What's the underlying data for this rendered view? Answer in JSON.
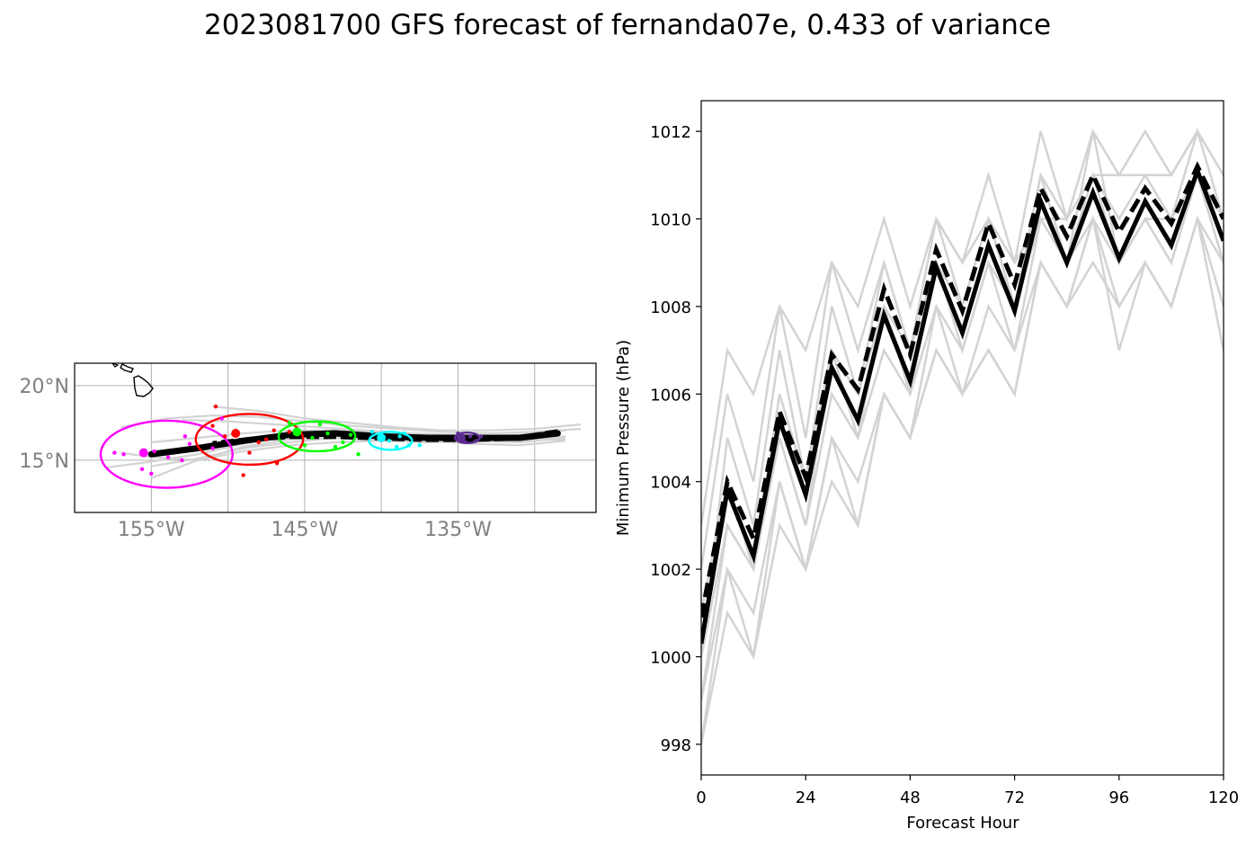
{
  "title": "2023081700 GFS forecast of fernanda07e, 0.433 of variance",
  "colors": {
    "ensemble": "#d3d3d3",
    "mean": "#000000",
    "gray_text": "#808080",
    "ellipses": [
      "#ff00ff",
      "#ff0000",
      "#00ff00",
      "#00ffff",
      "#5b2c91"
    ]
  },
  "chart_data": [
    {
      "type": "line",
      "subtype": "track-map",
      "xlim": [
        -160,
        -126
      ],
      "ylim": [
        11.5,
        21.5
      ],
      "xticks": [
        -155,
        -145,
        -135
      ],
      "xtick_labels": [
        "155°W",
        "145°W",
        "135°W"
      ],
      "yticks": [
        15,
        20
      ],
      "ytick_labels": [
        "15°N",
        "20°N"
      ],
      "grid": true,
      "mean_track": {
        "lon": [
          -128.5,
          -131,
          -134,
          -137,
          -140,
          -143,
          -146,
          -149,
          -152,
          -155
        ],
        "lat": [
          16.8,
          16.5,
          16.5,
          16.5,
          16.6,
          16.8,
          16.7,
          16.3,
          15.8,
          15.4
        ]
      },
      "dashed_track": {
        "lon": [
          -128.5,
          -131,
          -134,
          -137,
          -140,
          -143,
          -146,
          -148.5,
          -151
        ],
        "lat": [
          16.9,
          16.5,
          16.4,
          16.4,
          16.5,
          16.6,
          16.6,
          16.4,
          16.1
        ]
      },
      "ensemble_tracks": [
        {
          "lon": [
            -128,
            -131,
            -134,
            -137,
            -140,
            -143,
            -146,
            -149,
            -152,
            -155
          ],
          "lat": [
            17.0,
            16.7,
            16.6,
            16.7,
            16.8,
            17.0,
            17.0,
            16.8,
            16.5,
            16.2
          ]
        },
        {
          "lon": [
            -128,
            -131,
            -134,
            -137,
            -140,
            -143,
            -146,
            -149,
            -152,
            -155
          ],
          "lat": [
            16.5,
            16.2,
            16.3,
            16.2,
            16.3,
            16.5,
            16.2,
            15.8,
            15.1,
            14.6
          ]
        },
        {
          "lon": [
            -127,
            -130,
            -133,
            -136,
            -139,
            -142,
            -145,
            -148,
            -151,
            -154,
            -157
          ],
          "lat": [
            17.1,
            16.9,
            16.8,
            16.9,
            17.1,
            17.3,
            17.6,
            17.9,
            18.0,
            17.8,
            17.2
          ]
        },
        {
          "lon": [
            -128,
            -131,
            -134,
            -137,
            -140,
            -143,
            -146,
            -149,
            -152,
            -155,
            -158
          ],
          "lat": [
            16.3,
            16.0,
            16.1,
            16.3,
            16.5,
            16.7,
            16.6,
            16.1,
            15.4,
            14.9,
            14.5
          ]
        },
        {
          "lon": [
            -129,
            -132,
            -135,
            -138,
            -141,
            -144,
            -147,
            -150,
            -153
          ],
          "lat": [
            16.8,
            16.6,
            16.7,
            16.8,
            17.0,
            17.2,
            17.4,
            17.6,
            17.7
          ]
        },
        {
          "lon": [
            -128,
            -131,
            -134,
            -137,
            -140,
            -143,
            -146,
            -149,
            -152,
            -155
          ],
          "lat": [
            16.6,
            16.4,
            16.5,
            16.4,
            16.6,
            16.6,
            16.4,
            15.9,
            15.0,
            13.8
          ]
        },
        {
          "lon": [
            -127,
            -130,
            -133,
            -136,
            -139,
            -142,
            -145,
            -148,
            -151
          ],
          "lat": [
            17.4,
            17.1,
            17.0,
            17.0,
            17.2,
            17.5,
            17.8,
            18.3,
            18.6
          ]
        },
        {
          "lon": [
            -128,
            -131,
            -134,
            -137,
            -140,
            -143,
            -146,
            -149,
            -152,
            -155,
            -157
          ],
          "lat": [
            16.4,
            16.3,
            16.3,
            16.2,
            16.3,
            16.2,
            16.0,
            15.6,
            15.0,
            15.2,
            15.5
          ]
        }
      ],
      "ellipses": [
        {
          "color": "#ff00ff",
          "center": [
            -154,
            15.4
          ],
          "semi_axes_deg": [
            4.3,
            2.25
          ]
        },
        {
          "color": "#ff0000",
          "center": [
            -148.6,
            16.4
          ],
          "semi_axes_deg": [
            3.5,
            1.7
          ]
        },
        {
          "color": "#00ff00",
          "center": [
            -144.2,
            16.6
          ],
          "semi_axes_deg": [
            2.5,
            1.0
          ]
        },
        {
          "color": "#00ffff",
          "center": [
            -139.4,
            16.3
          ],
          "semi_axes_deg": [
            1.4,
            0.6
          ]
        },
        {
          "color": "#5b2c91",
          "center": [
            -134.4,
            16.5
          ],
          "semi_axes_deg": [
            0.8,
            0.35
          ]
        }
      ],
      "scatter": [
        {
          "color": "#ff00ff",
          "lon": [
            -155.5,
            -154.8,
            -153.9,
            -153.0,
            -152.5,
            -151.0,
            -156.8,
            -155.0,
            -150.4,
            -155.6,
            -152.8,
            -157.4
          ],
          "lat": [
            15.5,
            15.6,
            15.2,
            15.0,
            16.1,
            15.8,
            15.4,
            14.1,
            17.8,
            14.4,
            16.6,
            15.5
          ]
        },
        {
          "color": "#ff0000",
          "lon": [
            -149.5,
            -150.2,
            -148.0,
            -147.0,
            -146.0,
            -150.8,
            -148.6,
            -146.8,
            -147.5,
            -149.0,
            -151.0
          ],
          "lat": [
            16.8,
            16.6,
            16.2,
            17.0,
            16.9,
            18.6,
            15.5,
            14.8,
            16.4,
            14.0,
            17.3
          ]
        },
        {
          "color": "#00ff00",
          "lon": [
            -145.5,
            -144.5,
            -143.5,
            -142.5,
            -144.0,
            -146.0,
            -143.0,
            -142.0,
            -145.0,
            -141.5
          ],
          "lat": [
            16.9,
            16.5,
            16.8,
            16.2,
            17.4,
            17.5,
            15.9,
            16.7,
            16.0,
            15.4
          ]
        },
        {
          "color": "#00ffff",
          "lon": [
            -140.0,
            -139.5,
            -138.8,
            -138.2,
            -140.6,
            -139.0,
            -137.5,
            -138.5
          ],
          "lat": [
            16.5,
            16.3,
            16.6,
            16.0,
            16.9,
            15.9,
            16.0,
            16.8
          ]
        },
        {
          "color": "#5b2c91",
          "lon": [
            -134.8,
            -134.2,
            -133.8,
            -134.5,
            -133.5,
            -135.0
          ],
          "lat": [
            16.5,
            16.6,
            16.3,
            16.2,
            16.6,
            16.8
          ]
        }
      ]
    },
    {
      "type": "line",
      "xlabel": "Forecast Hour",
      "ylabel": "Minimum Pressure (hPa)",
      "xlim": [
        0,
        120
      ],
      "ylim": [
        997.3,
        1012.7
      ],
      "xticks": [
        0,
        24,
        48,
        72,
        96,
        120
      ],
      "yticks": [
        998,
        1000,
        1002,
        1004,
        1006,
        1008,
        1010,
        1012
      ],
      "grid": false,
      "x": [
        0,
        6,
        12,
        18,
        24,
        30,
        36,
        42,
        48,
        54,
        60,
        66,
        72,
        78,
        84,
        90,
        96,
        102,
        108,
        114,
        120
      ],
      "mean": [
        1000.3,
        1003.8,
        1002.3,
        1005.4,
        1003.7,
        1006.6,
        1005.4,
        1007.8,
        1006.3,
        1008.9,
        1007.4,
        1009.4,
        1007.9,
        1010.4,
        1009.0,
        1010.6,
        1009.1,
        1010.4,
        1009.4,
        1011.1,
        1009.5
      ],
      "mean_dashed": [
        1000.9,
        1004.0,
        1002.7,
        1005.6,
        1004.1,
        1006.9,
        1006.1,
        1008.4,
        1006.9,
        1009.3,
        1007.9,
        1009.9,
        1008.5,
        1010.7,
        1009.6,
        1011.0,
        1009.7,
        1010.7,
        1009.9,
        1011.2,
        1010.0
      ],
      "ensemble": [
        [
          998,
          1002,
          1000,
          1004,
          1002,
          1005,
          1003,
          1006,
          1005,
          1007,
          1006,
          1007,
          1006,
          1009,
          1008,
          1010,
          1008,
          1009,
          1008,
          1010,
          1007
        ],
        [
          999,
          1003,
          1002,
          1005,
          1003,
          1006,
          1005,
          1007,
          1006,
          1008,
          1007,
          1009,
          1007,
          1010,
          1009,
          1011,
          1009,
          1010,
          1009,
          1011,
          1009
        ],
        [
          1001,
          1004,
          1002,
          1006,
          1004,
          1007,
          1006,
          1008,
          1007,
          1009,
          1008,
          1010,
          1008,
          1011,
          1010,
          1011,
          1010,
          1011,
          1010,
          1012,
          1010
        ],
        [
          1000,
          1005,
          1003,
          1007,
          1004,
          1008,
          1006,
          1009,
          1007,
          1010,
          1008,
          1010,
          1008,
          1011,
          1009,
          1012,
          1009,
          1010,
          1010,
          1011,
          1009
        ],
        [
          1002,
          1006,
          1004,
          1008,
          1005,
          1009,
          1007,
          1009,
          1007,
          1010,
          1009,
          1011,
          1009,
          1012,
          1010,
          1012,
          1011,
          1012,
          1011,
          1012,
          1011
        ],
        [
          999,
          1002,
          1001,
          1004,
          1002,
          1005,
          1004,
          1006,
          1005,
          1008,
          1006,
          1008,
          1007,
          1009,
          1008,
          1010,
          1007,
          1009,
          1008,
          1010,
          1008
        ],
        [
          1003,
          1007,
          1006,
          1008,
          1007,
          1009,
          1008,
          1010,
          1008,
          1010,
          1009,
          1010,
          1009,
          1010,
          1010,
          1011,
          1011,
          1011,
          1011,
          1012,
          1011
        ],
        [
          1000,
          1003,
          1002,
          1005,
          1003,
          1007,
          1005,
          1008,
          1006,
          1009,
          1007,
          1009,
          1008,
          1010,
          1009,
          1010,
          1009,
          1010,
          1009,
          1011,
          1010
        ],
        [
          998,
          1001,
          1000,
          1003,
          1002,
          1004,
          1003,
          1006,
          1005,
          1007,
          1006,
          1007,
          1006,
          1009,
          1008,
          1009,
          1008,
          1009,
          1008,
          1010,
          1009
        ]
      ]
    }
  ]
}
